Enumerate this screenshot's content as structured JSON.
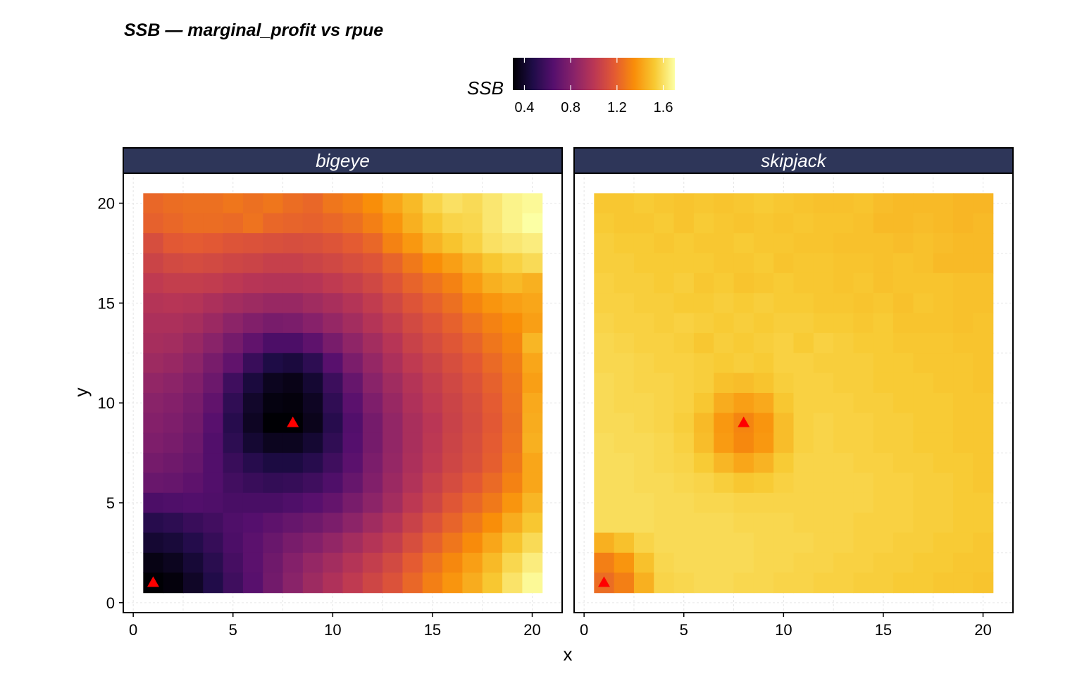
{
  "chart_data": {
    "type": "heatmap",
    "title": "SSB — marginal_profit vs rpue",
    "xlabel": "x",
    "ylabel": "y",
    "xlim": [
      -0.5,
      21.5
    ],
    "ylim": [
      -0.5,
      21.5
    ],
    "x_ticks": [
      0,
      5,
      10,
      15,
      20
    ],
    "y_ticks": [
      0,
      5,
      10,
      15,
      20
    ],
    "grid": true,
    "legend": {
      "title": "SSB",
      "position": "top",
      "range": [
        0.3,
        1.7
      ],
      "ticks": [
        0.4,
        0.8,
        1.2,
        1.6
      ],
      "tick_labels": [
        "0.4",
        "0.8",
        "1.2",
        "1.6"
      ],
      "colormap": "inferno"
    },
    "marker_color": "#ff0000",
    "panels": [
      {
        "name": "bigeye",
        "x_range": [
          1,
          20
        ],
        "y_range": [
          1,
          20
        ],
        "marker": {
          "x": 1,
          "y": 1,
          "shape": "triangle"
        },
        "marker2": {
          "x": 8,
          "y": 9,
          "shape": "triangle"
        },
        "grid_ssb_rows_top_to_bottom": [
          [
            1.22,
            1.24,
            1.25,
            1.25,
            1.27,
            1.25,
            1.27,
            1.24,
            1.22,
            1.27,
            1.3,
            1.35,
            1.42,
            1.48,
            1.56,
            1.6,
            1.58,
            1.62,
            1.66,
            1.68
          ],
          [
            1.2,
            1.22,
            1.24,
            1.24,
            1.23,
            1.26,
            1.22,
            1.21,
            1.2,
            1.22,
            1.25,
            1.3,
            1.37,
            1.45,
            1.52,
            1.56,
            1.57,
            1.62,
            1.66,
            1.7
          ],
          [
            1.12,
            1.17,
            1.18,
            1.17,
            1.15,
            1.14,
            1.13,
            1.12,
            1.13,
            1.15,
            1.18,
            1.22,
            1.31,
            1.38,
            1.46,
            1.51,
            1.55,
            1.6,
            1.62,
            1.64
          ],
          [
            1.07,
            1.1,
            1.11,
            1.1,
            1.08,
            1.07,
            1.05,
            1.05,
            1.07,
            1.09,
            1.12,
            1.15,
            1.21,
            1.28,
            1.35,
            1.4,
            1.46,
            1.52,
            1.55,
            1.58
          ],
          [
            1.02,
            1.04,
            1.04,
            1.03,
            1.01,
            0.99,
            0.98,
            0.98,
            0.99,
            1.02,
            1.05,
            1.09,
            1.15,
            1.21,
            1.26,
            1.31,
            1.39,
            1.45,
            1.48,
            1.45
          ],
          [
            0.98,
            0.99,
            0.98,
            0.95,
            0.92,
            0.9,
            0.88,
            0.88,
            0.91,
            0.94,
            0.98,
            1.03,
            1.09,
            1.15,
            1.2,
            1.25,
            1.32,
            1.37,
            1.4,
            1.42
          ],
          [
            0.95,
            0.95,
            0.93,
            0.89,
            0.84,
            0.8,
            0.77,
            0.78,
            0.82,
            0.87,
            0.92,
            0.98,
            1.04,
            1.1,
            1.15,
            1.2,
            1.26,
            1.31,
            1.35,
            1.4
          ],
          [
            0.93,
            0.92,
            0.88,
            0.83,
            0.76,
            0.69,
            0.62,
            0.62,
            0.68,
            0.77,
            0.85,
            0.92,
            0.99,
            1.06,
            1.11,
            1.16,
            1.21,
            1.27,
            1.32,
            1.47
          ],
          [
            0.9,
            0.88,
            0.84,
            0.77,
            0.69,
            0.56,
            0.47,
            0.45,
            0.52,
            0.66,
            0.78,
            0.87,
            0.95,
            1.02,
            1.07,
            1.12,
            1.17,
            1.23,
            1.29,
            1.42
          ],
          [
            0.86,
            0.84,
            0.8,
            0.73,
            0.58,
            0.45,
            0.37,
            0.35,
            0.42,
            0.57,
            0.71,
            0.83,
            0.91,
            0.98,
            1.04,
            1.09,
            1.14,
            1.2,
            1.27,
            1.4
          ],
          [
            0.83,
            0.81,
            0.77,
            0.69,
            0.53,
            0.4,
            0.33,
            0.32,
            0.38,
            0.53,
            0.67,
            0.79,
            0.88,
            0.96,
            1.02,
            1.07,
            1.12,
            1.18,
            1.26,
            1.43
          ],
          [
            0.81,
            0.79,
            0.75,
            0.66,
            0.5,
            0.38,
            0.3,
            0.3,
            0.36,
            0.5,
            0.64,
            0.76,
            0.86,
            0.94,
            1.0,
            1.06,
            1.11,
            1.17,
            1.25,
            1.44
          ],
          [
            0.79,
            0.77,
            0.73,
            0.64,
            0.52,
            0.42,
            0.37,
            0.37,
            0.42,
            0.53,
            0.65,
            0.76,
            0.86,
            0.94,
            1.01,
            1.07,
            1.12,
            1.18,
            1.26,
            1.45
          ],
          [
            0.76,
            0.74,
            0.71,
            0.64,
            0.56,
            0.5,
            0.46,
            0.46,
            0.5,
            0.58,
            0.67,
            0.78,
            0.87,
            0.95,
            1.02,
            1.08,
            1.13,
            1.19,
            1.28,
            1.42
          ],
          [
            0.72,
            0.71,
            0.68,
            0.64,
            0.59,
            0.56,
            0.54,
            0.55,
            0.58,
            0.63,
            0.71,
            0.8,
            0.89,
            0.97,
            1.05,
            1.11,
            1.17,
            1.23,
            1.31,
            1.42
          ],
          [
            0.62,
            0.63,
            0.64,
            0.63,
            0.61,
            0.61,
            0.61,
            0.63,
            0.66,
            0.7,
            0.77,
            0.84,
            0.92,
            1.01,
            1.08,
            1.16,
            1.22,
            1.28,
            1.37,
            1.47
          ],
          [
            0.5,
            0.52,
            0.56,
            0.59,
            0.63,
            0.65,
            0.68,
            0.71,
            0.74,
            0.78,
            0.84,
            0.91,
            0.98,
            1.06,
            1.14,
            1.21,
            1.28,
            1.35,
            1.44,
            1.52
          ],
          [
            0.42,
            0.44,
            0.49,
            0.55,
            0.62,
            0.67,
            0.72,
            0.77,
            0.81,
            0.86,
            0.92,
            0.98,
            1.04,
            1.12,
            1.2,
            1.27,
            1.34,
            1.42,
            1.51,
            1.58
          ],
          [
            0.34,
            0.37,
            0.43,
            0.51,
            0.6,
            0.67,
            0.74,
            0.81,
            0.87,
            0.92,
            0.98,
            1.04,
            1.1,
            1.18,
            1.26,
            1.33,
            1.4,
            1.48,
            1.57,
            1.64
          ],
          [
            0.3,
            0.32,
            0.39,
            0.48,
            0.58,
            0.66,
            0.75,
            0.83,
            0.9,
            0.96,
            1.02,
            1.08,
            1.14,
            1.22,
            1.3,
            1.37,
            1.44,
            1.52,
            1.61,
            1.68
          ]
        ]
      },
      {
        "name": "skipjack",
        "x_range": [
          1,
          20
        ],
        "y_range": [
          1,
          20
        ],
        "marker": {
          "x": 1,
          "y": 1,
          "shape": "triangle"
        },
        "marker2": {
          "x": 8,
          "y": 9,
          "shape": "triangle"
        },
        "grid_ssb_rows_top_to_bottom": [
          [
            1.52,
            1.52,
            1.53,
            1.52,
            1.51,
            1.52,
            1.51,
            1.52,
            1.53,
            1.52,
            1.51,
            1.5,
            1.5,
            1.51,
            1.49,
            1.48,
            1.48,
            1.48,
            1.47,
            1.47
          ],
          [
            1.53,
            1.52,
            1.52,
            1.53,
            1.51,
            1.53,
            1.52,
            1.51,
            1.52,
            1.51,
            1.52,
            1.51,
            1.51,
            1.5,
            1.48,
            1.48,
            1.49,
            1.48,
            1.47,
            1.48
          ],
          [
            1.54,
            1.53,
            1.53,
            1.52,
            1.53,
            1.52,
            1.52,
            1.53,
            1.52,
            1.52,
            1.51,
            1.51,
            1.5,
            1.5,
            1.5,
            1.49,
            1.5,
            1.49,
            1.48,
            1.48
          ],
          [
            1.54,
            1.54,
            1.53,
            1.53,
            1.53,
            1.53,
            1.52,
            1.52,
            1.53,
            1.51,
            1.52,
            1.52,
            1.51,
            1.51,
            1.5,
            1.51,
            1.5,
            1.48,
            1.48,
            1.48
          ],
          [
            1.55,
            1.54,
            1.54,
            1.53,
            1.54,
            1.52,
            1.53,
            1.51,
            1.52,
            1.53,
            1.52,
            1.52,
            1.51,
            1.52,
            1.5,
            1.51,
            1.51,
            1.51,
            1.5,
            1.5
          ],
          [
            1.55,
            1.55,
            1.54,
            1.54,
            1.53,
            1.53,
            1.54,
            1.53,
            1.54,
            1.53,
            1.53,
            1.52,
            1.52,
            1.51,
            1.52,
            1.5,
            1.52,
            1.51,
            1.5,
            1.5
          ],
          [
            1.56,
            1.55,
            1.55,
            1.54,
            1.55,
            1.54,
            1.53,
            1.54,
            1.53,
            1.54,
            1.54,
            1.53,
            1.53,
            1.52,
            1.53,
            1.51,
            1.51,
            1.51,
            1.5,
            1.51
          ],
          [
            1.57,
            1.56,
            1.55,
            1.55,
            1.54,
            1.52,
            1.54,
            1.53,
            1.54,
            1.55,
            1.53,
            1.55,
            1.54,
            1.53,
            1.53,
            1.52,
            1.52,
            1.52,
            1.51,
            1.51
          ],
          [
            1.57,
            1.57,
            1.56,
            1.55,
            1.55,
            1.54,
            1.53,
            1.54,
            1.53,
            1.55,
            1.55,
            1.54,
            1.54,
            1.54,
            1.53,
            1.53,
            1.52,
            1.52,
            1.52,
            1.51
          ],
          [
            1.58,
            1.57,
            1.56,
            1.56,
            1.55,
            1.54,
            1.5,
            1.49,
            1.51,
            1.54,
            1.55,
            1.55,
            1.54,
            1.54,
            1.53,
            1.53,
            1.53,
            1.52,
            1.52,
            1.51
          ],
          [
            1.58,
            1.57,
            1.57,
            1.56,
            1.55,
            1.52,
            1.44,
            1.4,
            1.43,
            1.52,
            1.55,
            1.55,
            1.55,
            1.54,
            1.54,
            1.53,
            1.53,
            1.53,
            1.52,
            1.52
          ],
          [
            1.58,
            1.58,
            1.57,
            1.56,
            1.54,
            1.48,
            1.38,
            1.32,
            1.37,
            1.49,
            1.55,
            1.56,
            1.55,
            1.55,
            1.54,
            1.54,
            1.53,
            1.53,
            1.52,
            1.52
          ],
          [
            1.59,
            1.58,
            1.58,
            1.57,
            1.55,
            1.49,
            1.39,
            1.33,
            1.38,
            1.49,
            1.55,
            1.56,
            1.55,
            1.55,
            1.54,
            1.54,
            1.53,
            1.53,
            1.52,
            1.52
          ],
          [
            1.59,
            1.59,
            1.58,
            1.57,
            1.56,
            1.53,
            1.47,
            1.42,
            1.46,
            1.53,
            1.56,
            1.56,
            1.56,
            1.55,
            1.55,
            1.54,
            1.54,
            1.53,
            1.53,
            1.52
          ],
          [
            1.59,
            1.59,
            1.58,
            1.58,
            1.57,
            1.56,
            1.54,
            1.52,
            1.53,
            1.55,
            1.56,
            1.56,
            1.56,
            1.56,
            1.55,
            1.55,
            1.54,
            1.54,
            1.53,
            1.52
          ],
          [
            1.59,
            1.59,
            1.59,
            1.58,
            1.58,
            1.57,
            1.57,
            1.56,
            1.56,
            1.56,
            1.56,
            1.56,
            1.56,
            1.56,
            1.55,
            1.55,
            1.54,
            1.54,
            1.53,
            1.53
          ],
          [
            1.59,
            1.59,
            1.59,
            1.58,
            1.58,
            1.58,
            1.58,
            1.57,
            1.57,
            1.57,
            1.56,
            1.56,
            1.56,
            1.55,
            1.55,
            1.55,
            1.54,
            1.54,
            1.53,
            1.53
          ],
          [
            1.45,
            1.5,
            1.56,
            1.58,
            1.58,
            1.58,
            1.58,
            1.58,
            1.57,
            1.57,
            1.57,
            1.56,
            1.56,
            1.55,
            1.55,
            1.54,
            1.54,
            1.53,
            1.53,
            1.52
          ],
          [
            1.3,
            1.37,
            1.5,
            1.57,
            1.58,
            1.58,
            1.58,
            1.58,
            1.57,
            1.57,
            1.56,
            1.56,
            1.55,
            1.55,
            1.54,
            1.54,
            1.53,
            1.53,
            1.52,
            1.52
          ],
          [
            1.24,
            1.3,
            1.45,
            1.56,
            1.57,
            1.58,
            1.58,
            1.57,
            1.57,
            1.56,
            1.56,
            1.55,
            1.55,
            1.54,
            1.54,
            1.53,
            1.53,
            1.52,
            1.52,
            1.51
          ]
        ]
      }
    ]
  }
}
